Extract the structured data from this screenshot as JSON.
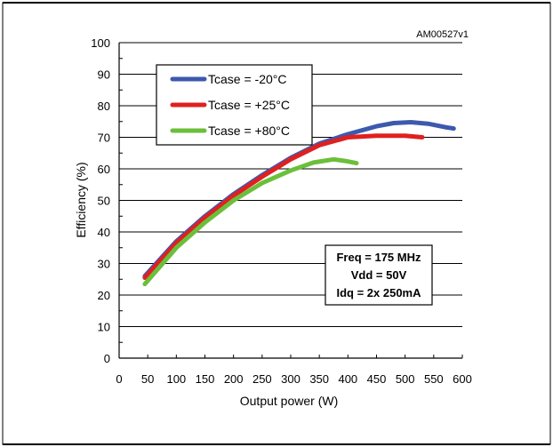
{
  "chart_data": {
    "type": "line",
    "figure_code": "AM00527v1",
    "xlabel": "Output power (W)",
    "ylabel": "Efficiency (%)",
    "xlim": [
      0,
      600
    ],
    "ylim": [
      0,
      100
    ],
    "xticks": [
      0,
      50,
      100,
      150,
      200,
      250,
      300,
      350,
      400,
      450,
      500,
      550,
      600
    ],
    "yticks": [
      0,
      10,
      20,
      30,
      40,
      50,
      60,
      70,
      80,
      90,
      100
    ],
    "grid": "horizontal",
    "legend_position": "top-left",
    "series": [
      {
        "name": "Tcase = -20°C",
        "color": "#3d59ae",
        "points": [
          [
            45,
            26
          ],
          [
            100,
            37
          ],
          [
            150,
            45
          ],
          [
            200,
            52
          ],
          [
            250,
            58
          ],
          [
            300,
            63.5
          ],
          [
            350,
            68
          ],
          [
            400,
            71
          ],
          [
            450,
            73.5
          ],
          [
            480,
            74.5
          ],
          [
            510,
            74.8
          ],
          [
            540,
            74.3
          ],
          [
            570,
            73.2
          ],
          [
            585,
            72.8
          ]
        ]
      },
      {
        "name": "Tcase = +25°C",
        "color": "#e02020",
        "points": [
          [
            45,
            25.5
          ],
          [
            100,
            36.5
          ],
          [
            150,
            44.5
          ],
          [
            200,
            51.5
          ],
          [
            250,
            57.5
          ],
          [
            300,
            63
          ],
          [
            350,
            67.5
          ],
          [
            400,
            70
          ],
          [
            450,
            70.5
          ],
          [
            500,
            70.5
          ],
          [
            530,
            70
          ]
        ]
      },
      {
        "name": "Tcase = +80°C",
        "color": "#6bbf3b",
        "points": [
          [
            45,
            23.5
          ],
          [
            100,
            35
          ],
          [
            150,
            43
          ],
          [
            200,
            50
          ],
          [
            250,
            55.5
          ],
          [
            300,
            59.5
          ],
          [
            340,
            62
          ],
          [
            375,
            63
          ],
          [
            395,
            62.5
          ],
          [
            415,
            61.8
          ]
        ]
      }
    ],
    "conditions": [
      "Freq = 175 MHz",
      "Vdd = 50V",
      "Idq = 2x 250mA"
    ]
  }
}
